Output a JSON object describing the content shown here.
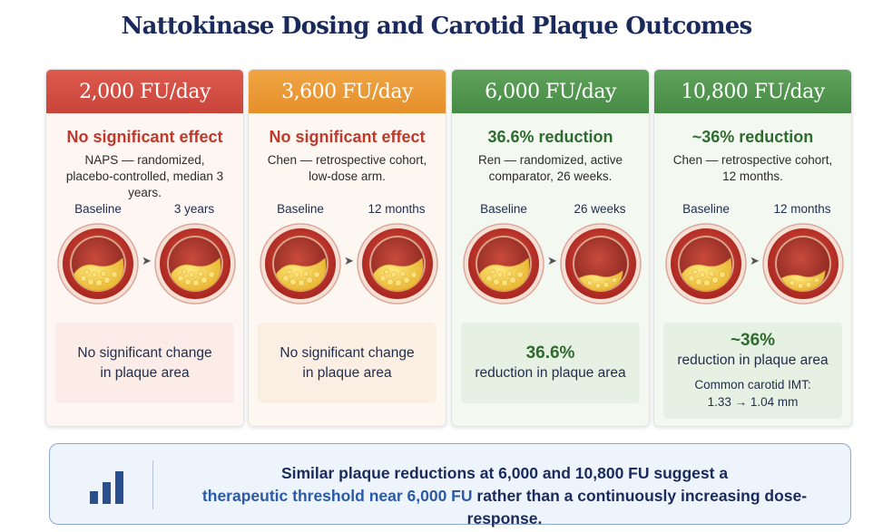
{
  "title": "Nattokinase Dosing and Carotid Plaque Outcomes",
  "cards": [
    {
      "dose": "2,000 FU/day",
      "verdict": "No significant effect",
      "study_line1": "NAPS — randomized,",
      "study_line2": "placebo-controlled, median 3 years.",
      "baseline_label": "Baseline",
      "followup_label": "3 years",
      "result_text1": "No significant change",
      "result_text2": "in plaque area",
      "color": "#c9443b"
    },
    {
      "dose": "3,600 FU/day",
      "verdict": "No significant effect",
      "study_line1": "Chen — retrospective cohort,",
      "study_line2": "low-dose arm.",
      "baseline_label": "Baseline",
      "followup_label": "12 months",
      "result_text1": "No significant change",
      "result_text2": "in plaque area",
      "color": "#e58f2b"
    },
    {
      "dose": "6,000 FU/day",
      "verdict": "36.6% reduction",
      "study_line1": "Ren — randomized, active",
      "study_line2": "comparator, 26 weeks.",
      "baseline_label": "Baseline",
      "followup_label": "26 weeks",
      "result_big": "36.6%",
      "result_text1": "reduction in plaque area",
      "color": "#478a45"
    },
    {
      "dose": "10,800 FU/day",
      "verdict": "~36% reduction",
      "study_line1": "Chen — retrospective cohort,",
      "study_line2": "12 months.",
      "baseline_label": "Baseline",
      "followup_label": "12 months",
      "result_big": "~36%",
      "result_text1": "reduction in plaque area",
      "result_small1": "Common carotid IMT:",
      "result_small2": "1.33 → 1.04 mm",
      "color": "#478a45"
    }
  ],
  "summary": {
    "line1": "Similar plaque reductions at 6,000 and 10,800 FU suggest a",
    "line2_a": "therapeutic threshold near 6,000 FU",
    "line2_b": " rather than a continuously increasing ",
    "line2_c": "dose-response",
    "line2_d": ".",
    "icon": "bar-chart-icon"
  }
}
